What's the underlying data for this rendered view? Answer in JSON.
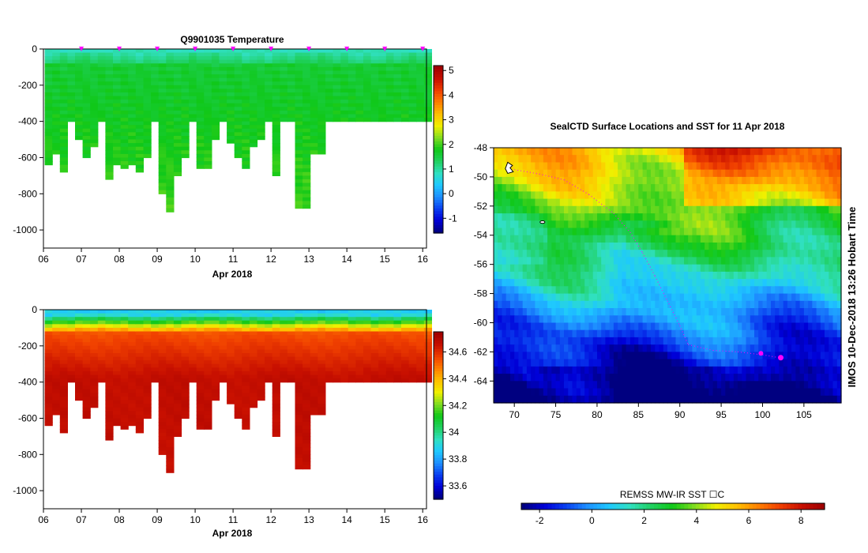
{
  "palette": [
    "#000080",
    "#0000d8",
    "#0a40f0",
    "#1e90ff",
    "#1ec8ff",
    "#30e0c0",
    "#20d060",
    "#10c818",
    "#80dd20",
    "#f0f000",
    "#ffc000",
    "#ff8000",
    "#f04000",
    "#c81000",
    "#a00000"
  ],
  "footer_note": "IMOS 10-Dec-2018 13:26 Hobart Time",
  "chart_data": [
    {
      "type": "heatmap",
      "title": "Q9901035  Temperature",
      "xlabel": "Apr 2018",
      "ylabel": "",
      "x_ticks": [
        "06",
        "07",
        "08",
        "09",
        "10",
        "11",
        "12",
        "13",
        "14",
        "15",
        "16"
      ],
      "y_ticks": [
        "0",
        "-200",
        "-400",
        "-600",
        "-800",
        "-1000"
      ],
      "xlim": [
        6,
        16.1
      ],
      "ylim": [
        -1100,
        0
      ],
      "profile_times": [
        6.05,
        6.25,
        6.45,
        6.65,
        6.85,
        7.05,
        7.25,
        7.45,
        7.65,
        7.85,
        8.05,
        8.25,
        8.45,
        8.65,
        8.85,
        9.05,
        9.25,
        9.45,
        9.65,
        9.85,
        10.05,
        10.25,
        10.45,
        10.65,
        10.85,
        11.05,
        11.25,
        11.45,
        11.65,
        11.85,
        12.05,
        12.25,
        12.45,
        12.65,
        12.85,
        13.05,
        13.25,
        13.45,
        13.65,
        13.85,
        14.05,
        14.25,
        14.45,
        14.65,
        14.85,
        15.05,
        15.25,
        15.45,
        15.65,
        15.85,
        16.05
      ],
      "profile_max_depths": [
        -640,
        -570,
        -670,
        -400,
        -500,
        -590,
        -530,
        -400,
        -710,
        -630,
        -650,
        -630,
        -670,
        -600,
        -400,
        -800,
        -900,
        -700,
        -600,
        -400,
        -660,
        -660,
        -500,
        -400,
        -520,
        -590,
        -660,
        -540,
        -500,
        -400,
        -690,
        -400,
        -400,
        -880,
        -880,
        -570,
        -570,
        -400,
        -400,
        -400,
        -400,
        -400,
        -400,
        -400,
        -400,
        -400,
        -400,
        -400,
        -400,
        -400,
        -400
      ],
      "marker_times": [
        7,
        8,
        9,
        10,
        11,
        12,
        13,
        14,
        15,
        16
      ],
      "colorbar": {
        "ticks": [
          "-1",
          "0",
          "1",
          "2",
          "3",
          "4",
          "5"
        ],
        "range": [
          -1.6,
          5.2
        ]
      }
    },
    {
      "type": "heatmap",
      "title": "",
      "xlabel": "Apr 2018",
      "ylabel": "",
      "x_ticks": [
        "06",
        "07",
        "08",
        "09",
        "10",
        "11",
        "12",
        "13",
        "14",
        "15",
        "16"
      ],
      "y_ticks": [
        "0",
        "-200",
        "-400",
        "-600",
        "-800",
        "-1000"
      ],
      "xlim": [
        6,
        16.1
      ],
      "ylim": [
        -1100,
        0
      ],
      "colorbar": {
        "ticks": [
          "33.6",
          "33.8",
          "34",
          "34.2",
          "34.4",
          "34.6"
        ],
        "range": [
          33.5,
          34.75
        ]
      }
    },
    {
      "type": "heatmap",
      "title": "SealCTD Surface Locations and SST for 11 Apr 2018",
      "x_ticks": [
        "70",
        "75",
        "80",
        "85",
        "90",
        "95",
        "100",
        "105"
      ],
      "y_ticks": [
        "-48",
        "-50",
        "-52",
        "-54",
        "-56",
        "-58",
        "-60",
        "-62",
        "-64"
      ],
      "xlim": [
        67.5,
        109.5
      ],
      "ylim": [
        -65.5,
        -48
      ],
      "colorbar": {
        "label": "REMSS MW-IR SST ☐C",
        "ticks": [
          "-2",
          "0",
          "2",
          "4",
          "6",
          "8"
        ],
        "range": [
          -2.7,
          8.9
        ]
      }
    }
  ]
}
